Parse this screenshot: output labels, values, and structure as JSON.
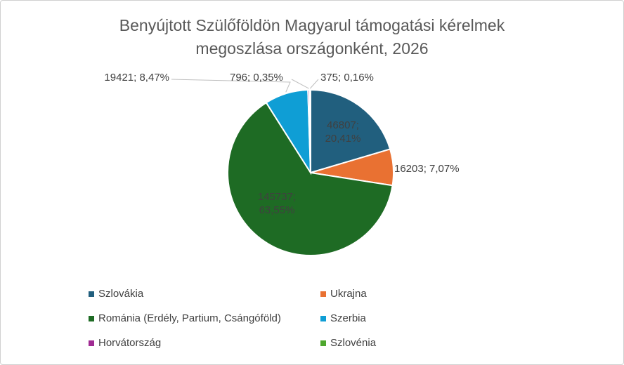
{
  "chart_data": {
    "type": "pie",
    "title": [
      "Benyújtott Szülőföldön Magyarul támogatási kérelmek",
      "megoszlása országonként, 2026"
    ],
    "categories": [
      "Szlovákia",
      "Ukrajna",
      "Románia (Erdély, Partium, Csángóföld)",
      "Szerbia",
      "Horvátország",
      "Szlovénia"
    ],
    "values": [
      46807,
      16203,
      145737,
      19421,
      796,
      375
    ],
    "value_labels": [
      "46807; 20,41%",
      "16203; 7,07%",
      "145737; 63,55%",
      "19421; 8,47%",
      "796; 0,35%",
      "375; 0,16%"
    ],
    "colors": [
      "#215f7e",
      "#e97132",
      "#1e6b24",
      "#0f9ed5",
      "#a02b93",
      "#4ea72e"
    ],
    "legend": "bottom"
  }
}
